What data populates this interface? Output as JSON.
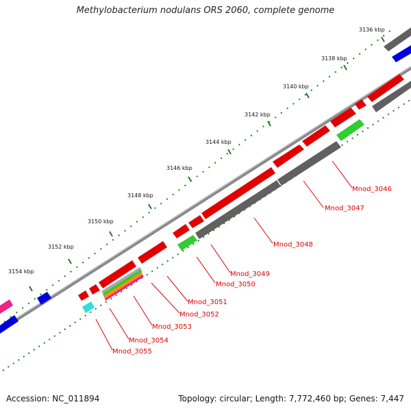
{
  "title": "Methylobacterium nodulans ORS 2060, complete genome",
  "footer": {
    "accession": "Accession: NC_011894",
    "summary": "Topology: circular; Length: 7,772,460 bp; Genes: 7,447"
  },
  "colors": {
    "backbone": "#8a8a8a",
    "tick": "#1f7a1f",
    "forward_gene": "#e00000",
    "reverse_gene": "#606060",
    "label": "#dd0000"
  },
  "ticks": [
    "3136 kbp",
    "3138 kbp",
    "3140 kbp",
    "3142 kbp",
    "3144 kbp",
    "3146 kbp",
    "3148 kbp",
    "3150 kbp",
    "3152 kbp",
    "3154 kbp"
  ],
  "gene_labels": [
    "Mnod_3046",
    "Mnod_3047",
    "Mnod_3048",
    "Mnod_3049",
    "Mnod_3050",
    "Mnod_3051",
    "Mnod_3052",
    "Mnod_3053",
    "Mnod_3054",
    "Mnod_3055"
  ]
}
